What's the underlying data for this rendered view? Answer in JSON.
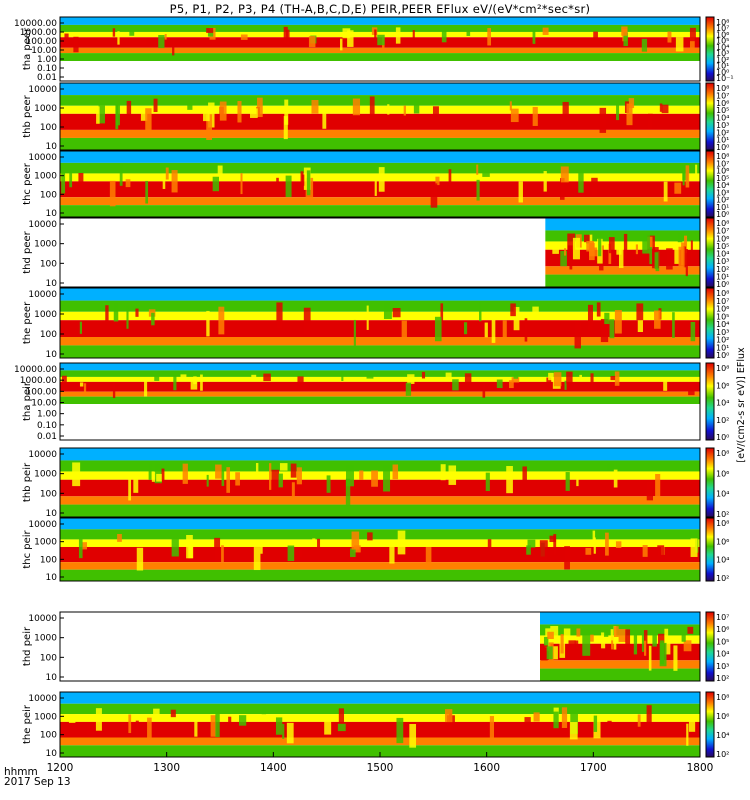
{
  "title": "P5, P1, P2, P3, P4 (TH-A,B,C,D,E) PEIR,PEER EFlux eV/(eV*cm²*sec*sr)",
  "time_axis": {
    "label": "hhmm",
    "date": "2017 Sep 13",
    "ticks": [
      "1200",
      "1300",
      "1400",
      "1500",
      "1600",
      "1700",
      "1800"
    ]
  },
  "colorbar_unit": "[eV/(cm2-s sr eV)] EFlux",
  "chart_data": [
    {
      "type": "heatmap",
      "ylabel": "tha peer",
      "x_range": [
        "1200",
        "1800"
      ],
      "yticks": [
        "10000.00",
        "1000.00",
        "100.00",
        "10.00",
        "1.00",
        "0.10",
        "0.01"
      ],
      "ylog": true,
      "clabels": [
        "10⁸",
        "10⁷",
        "10⁶",
        "10⁵",
        "10⁴",
        "10³",
        "10²",
        "10¹",
        "10⁰",
        "10⁻¹"
      ]
    },
    {
      "type": "heatmap",
      "ylabel": "thb peer",
      "x_range": [
        "1200",
        "1800"
      ],
      "yticks": [
        "10000",
        "1000",
        "100",
        "10"
      ],
      "ylog": true,
      "clabels": [
        "10⁸",
        "10⁷",
        "10⁶",
        "10⁵",
        "10⁴",
        "10³",
        "10²",
        "10¹",
        "10⁰"
      ]
    },
    {
      "type": "heatmap",
      "ylabel": "thc peer",
      "x_range": [
        "1200",
        "1800"
      ],
      "yticks": [
        "10000",
        "1000",
        "100",
        "10"
      ],
      "ylog": true,
      "clabels": [
        "10⁸",
        "10⁷",
        "10⁶",
        "10⁵",
        "10⁴",
        "10³",
        "10²",
        "10¹",
        "10⁰"
      ]
    },
    {
      "type": "heatmap",
      "ylabel": "thd peer",
      "x_range": [
        "1200",
        "1800"
      ],
      "data_start": "1655",
      "yticks": [
        "10000",
        "1000",
        "100",
        "10"
      ],
      "ylog": true,
      "clabels": [
        "10⁸",
        "10⁷",
        "10⁶",
        "10⁵",
        "10⁴",
        "10³",
        "10²",
        "10¹",
        "10⁰"
      ]
    },
    {
      "type": "heatmap",
      "ylabel": "the peer",
      "x_range": [
        "1200",
        "1800"
      ],
      "yticks": [
        "10000",
        "1000",
        "100",
        "10"
      ],
      "ylog": true,
      "clabels": [
        "10⁸",
        "10⁷",
        "10⁶",
        "10⁵",
        "10⁴",
        "10³",
        "10²",
        "10¹",
        "10⁰"
      ]
    },
    {
      "type": "heatmap",
      "ylabel": "tha peir",
      "x_range": [
        "1200",
        "1800"
      ],
      "yticks": [
        "10000.00",
        "1000.00",
        "100.00",
        "10.00",
        "1.00",
        "0.10",
        "0.01"
      ],
      "ylog": true,
      "clabels": [
        "10⁸",
        "10⁶",
        "10⁴",
        "10²",
        "10⁰"
      ]
    },
    {
      "type": "heatmap",
      "ylabel": "thb peir",
      "x_range": [
        "1200",
        "1800"
      ],
      "yticks": [
        "10000",
        "1000",
        "100",
        "10"
      ],
      "ylog": true,
      "clabels": [
        "10⁸",
        "10⁶",
        "10⁴",
        "10²"
      ]
    },
    {
      "type": "heatmap",
      "ylabel": "thc peir",
      "x_range": [
        "1200",
        "1800"
      ],
      "yticks": [
        "10000",
        "1000",
        "100",
        "10"
      ],
      "ylog": true,
      "clabels": [
        "10⁸",
        "10⁶",
        "10⁴",
        "10²"
      ]
    },
    {
      "type": "heatmap",
      "ylabel": "thd peir",
      "x_range": [
        "1200",
        "1800"
      ],
      "data_start": "1650",
      "yticks": [
        "10000",
        "1000",
        "100",
        "10"
      ],
      "ylog": true,
      "clabels": [
        "10⁷",
        "10⁶",
        "10⁵",
        "10⁴",
        "10³",
        "10²"
      ]
    },
    {
      "type": "heatmap",
      "ylabel": "the peir",
      "x_range": [
        "1200",
        "1800"
      ],
      "yticks": [
        "10000",
        "1000",
        "100",
        "10"
      ],
      "ylog": true,
      "clabels": [
        "10⁸",
        "10⁶",
        "10⁴",
        "10²"
      ]
    }
  ]
}
